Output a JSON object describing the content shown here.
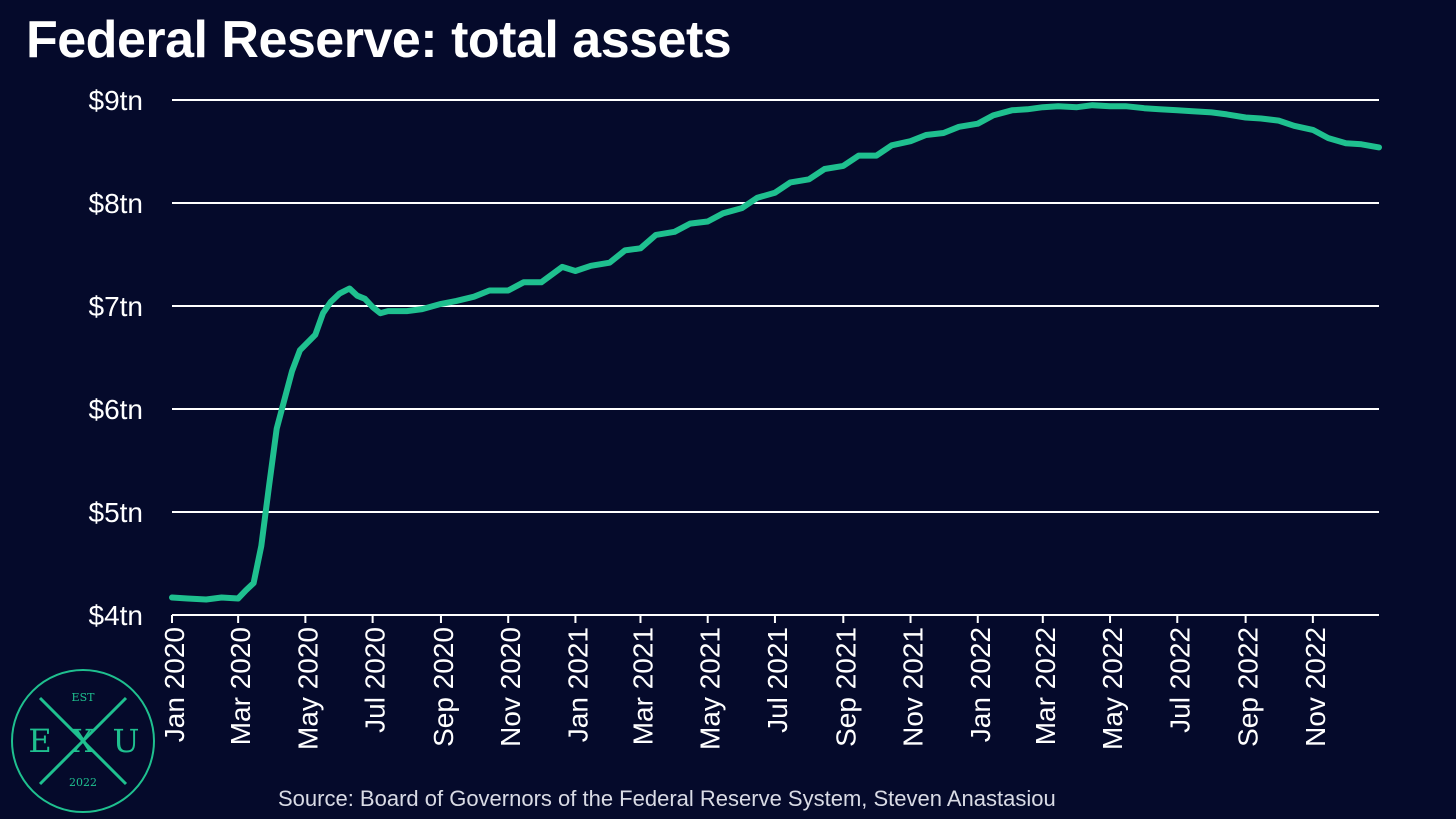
{
  "title": "Federal Reserve: total assets",
  "source": "Source: Board of Governors of the Federal Reserve System, Steven Anastasiou",
  "logo": {
    "text_top": "EST",
    "letter_left": "E",
    "letter_center": "X",
    "letter_right": "U",
    "text_bottom": "2022"
  },
  "colors": {
    "background": "#050a2b",
    "line": "#1fc08f",
    "grid": "#ffffff",
    "text": "#ffffff"
  },
  "chart_data": {
    "type": "line",
    "title": "Federal Reserve: total assets",
    "xlabel": "",
    "ylabel": "",
    "ylim": [
      4,
      9
    ],
    "y_ticks": [
      {
        "value": 9,
        "label": "$9tn"
      },
      {
        "value": 8,
        "label": "$8tn"
      },
      {
        "value": 7,
        "label": "$7tn"
      },
      {
        "value": 6,
        "label": "$6tn"
      },
      {
        "value": 5,
        "label": "$5tn"
      },
      {
        "value": 4,
        "label": "$4tn"
      }
    ],
    "x_ticks": [
      "Jan 2020",
      "Mar 2020",
      "May 2020",
      "Jul 2020",
      "Sep 2020",
      "Nov 2020",
      "Jan 2021",
      "Mar 2021",
      "May 2021",
      "Jul 2021",
      "Sep 2021",
      "Nov 2021",
      "Jan 2022",
      "Mar 2022",
      "May 2022",
      "Jul 2022",
      "Sep 2022",
      "Nov 2022"
    ],
    "xlim": [
      "2020-01-01",
      "2022-12-31"
    ],
    "grid": "horizontal",
    "series": [
      {
        "values": [
          [
            "2020-01-01",
            4.17
          ],
          [
            "2020-01-15",
            4.16
          ],
          [
            "2020-02-01",
            4.15
          ],
          [
            "2020-02-15",
            4.17
          ],
          [
            "2020-03-01",
            4.16
          ],
          [
            "2020-03-08",
            4.24
          ],
          [
            "2020-03-15",
            4.31
          ],
          [
            "2020-03-22",
            4.67
          ],
          [
            "2020-03-29",
            5.25
          ],
          [
            "2020-04-05",
            5.81
          ],
          [
            "2020-04-12",
            6.09
          ],
          [
            "2020-04-19",
            6.37
          ],
          [
            "2020-04-26",
            6.57
          ],
          [
            "2020-05-10",
            6.72
          ],
          [
            "2020-05-17",
            6.93
          ],
          [
            "2020-05-24",
            7.04
          ],
          [
            "2020-06-01",
            7.12
          ],
          [
            "2020-06-10",
            7.17
          ],
          [
            "2020-06-17",
            7.1
          ],
          [
            "2020-06-24",
            7.07
          ],
          [
            "2020-07-01",
            6.99
          ],
          [
            "2020-07-08",
            6.93
          ],
          [
            "2020-07-15",
            6.95
          ],
          [
            "2020-08-01",
            6.95
          ],
          [
            "2020-08-15",
            6.97
          ],
          [
            "2020-09-01",
            7.02
          ],
          [
            "2020-09-15",
            7.05
          ],
          [
            "2020-10-01",
            7.09
          ],
          [
            "2020-10-15",
            7.15
          ],
          [
            "2020-11-01",
            7.15
          ],
          [
            "2020-11-15",
            7.23
          ],
          [
            "2020-12-01",
            7.23
          ],
          [
            "2020-12-20",
            7.38
          ],
          [
            "2021-01-01",
            7.34
          ],
          [
            "2021-01-15",
            7.39
          ],
          [
            "2021-02-01",
            7.42
          ],
          [
            "2021-02-15",
            7.54
          ],
          [
            "2021-03-01",
            7.56
          ],
          [
            "2021-03-15",
            7.69
          ],
          [
            "2021-04-01",
            7.72
          ],
          [
            "2021-04-15",
            7.8
          ],
          [
            "2021-05-01",
            7.82
          ],
          [
            "2021-05-15",
            7.9
          ],
          [
            "2021-06-01",
            7.95
          ],
          [
            "2021-06-15",
            8.05
          ],
          [
            "2021-07-01",
            8.1
          ],
          [
            "2021-07-15",
            8.2
          ],
          [
            "2021-08-01",
            8.23
          ],
          [
            "2021-08-15",
            8.33
          ],
          [
            "2021-09-01",
            8.36
          ],
          [
            "2021-09-15",
            8.46
          ],
          [
            "2021-10-01",
            8.46
          ],
          [
            "2021-10-15",
            8.56
          ],
          [
            "2021-11-01",
            8.6
          ],
          [
            "2021-11-15",
            8.66
          ],
          [
            "2021-12-01",
            8.68
          ],
          [
            "2021-12-15",
            8.74
          ],
          [
            "2022-01-01",
            8.77
          ],
          [
            "2022-01-15",
            8.85
          ],
          [
            "2022-02-01",
            8.9
          ],
          [
            "2022-02-15",
            8.91
          ],
          [
            "2022-03-01",
            8.93
          ],
          [
            "2022-03-15",
            8.94
          ],
          [
            "2022-04-01",
            8.93
          ],
          [
            "2022-04-15",
            8.95
          ],
          [
            "2022-05-01",
            8.94
          ],
          [
            "2022-05-15",
            8.94
          ],
          [
            "2022-06-01",
            8.92
          ],
          [
            "2022-06-15",
            8.91
          ],
          [
            "2022-07-01",
            8.9
          ],
          [
            "2022-07-15",
            8.89
          ],
          [
            "2022-08-01",
            8.88
          ],
          [
            "2022-08-15",
            8.86
          ],
          [
            "2022-09-01",
            8.83
          ],
          [
            "2022-09-15",
            8.82
          ],
          [
            "2022-10-01",
            8.8
          ],
          [
            "2022-10-15",
            8.75
          ],
          [
            "2022-11-01",
            8.71
          ],
          [
            "2022-11-15",
            8.63
          ],
          [
            "2022-12-01",
            8.58
          ],
          [
            "2022-12-15",
            8.57
          ],
          [
            "2022-12-31",
            8.54
          ]
        ]
      }
    ]
  }
}
